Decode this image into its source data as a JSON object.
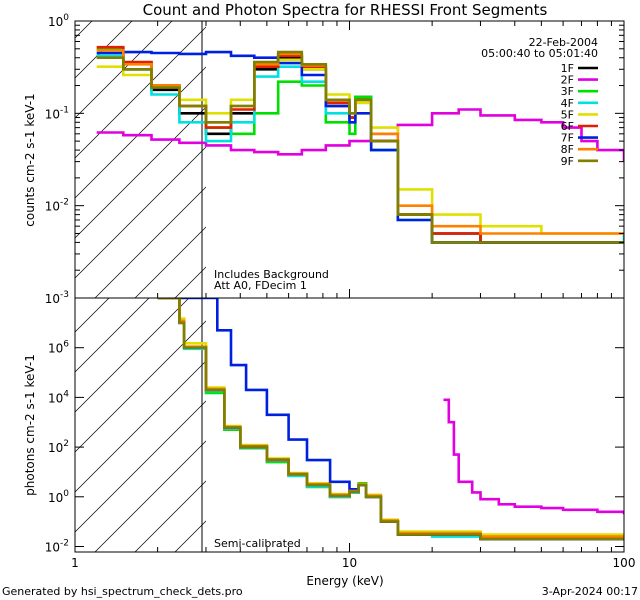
{
  "page": {
    "title": "Count and Photon Spectra for RHESSI Front Segments",
    "footer_left": "Generated by hsi_spectrum_check_dets.pro",
    "footer_right": "3-Apr-2024 00:17"
  },
  "chart_data": [
    {
      "type": "line",
      "panel": "top",
      "xscale": "log",
      "yscale": "log",
      "xlim": [
        1,
        100
      ],
      "ylim": [
        0.001,
        1
      ],
      "xlabel": "",
      "ylabel": "counts cm-2 s-1 keV-1",
      "y_ticks": [
        {
          "value": 1,
          "label": "10^0"
        },
        {
          "value": 0.1,
          "label": "10^-1"
        },
        {
          "value": 0.01,
          "label": "10^-2"
        },
        {
          "value": 0.001,
          "label": "10^-3"
        }
      ],
      "hatched_region_x": [
        1,
        3
      ],
      "annotations": {
        "date": "22-Feb-2004",
        "time_range": "05:00:40 to 05:01:40",
        "line1": "Includes Background",
        "line2": "Att A0, FDecim 1"
      },
      "series": [
        {
          "name": "1F",
          "color": "#000000",
          "x": [
            1.2,
            1.5,
            1.9,
            2.4,
            3.0,
            3.7,
            4.5,
            5.5,
            6.7,
            8.2,
            10.0,
            10.5,
            12.0,
            15.0,
            20.0,
            30.0,
            50.0,
            100.0
          ],
          "y": [
            0.42,
            0.3,
            0.18,
            0.1,
            0.06,
            0.1,
            0.3,
            0.4,
            0.3,
            0.12,
            0.09,
            0.15,
            0.05,
            0.008,
            0.005,
            0.004,
            0.004,
            0.004
          ]
        },
        {
          "name": "2F",
          "color": "#e000e0",
          "x": [
            1.2,
            1.5,
            1.9,
            2.4,
            3.0,
            3.7,
            4.5,
            5.5,
            6.7,
            8.2,
            10.0,
            12.0,
            15.0,
            20.0,
            25.0,
            30.0,
            40.0,
            50.0,
            60.0,
            70.0,
            80.0,
            100.0
          ],
          "y": [
            0.062,
            0.058,
            0.052,
            0.048,
            0.045,
            0.04,
            0.038,
            0.036,
            0.04,
            0.045,
            0.05,
            0.06,
            0.075,
            0.1,
            0.11,
            0.095,
            0.085,
            0.08,
            0.07,
            0.05,
            0.04,
            0.03
          ]
        },
        {
          "name": "3F",
          "color": "#00e000",
          "x": [
            1.2,
            1.5,
            1.9,
            2.4,
            3.0,
            3.7,
            4.5,
            5.5,
            6.7,
            8.2,
            10.0,
            10.5,
            12.0,
            15.0,
            20.0,
            30.0,
            50.0,
            100.0
          ],
          "y": [
            0.5,
            0.35,
            0.2,
            0.12,
            0.07,
            0.06,
            0.1,
            0.22,
            0.2,
            0.08,
            0.06,
            0.15,
            0.04,
            0.008,
            0.004,
            0.004,
            0.004,
            0.004
          ]
        },
        {
          "name": "4F",
          "color": "#00e0e0",
          "x": [
            1.2,
            1.5,
            1.9,
            2.4,
            3.0,
            3.7,
            4.5,
            5.5,
            6.7,
            8.2,
            10.0,
            10.5,
            12.0,
            15.0,
            20.0,
            30.0,
            50.0,
            100.0
          ],
          "y": [
            0.42,
            0.3,
            0.16,
            0.08,
            0.05,
            0.08,
            0.25,
            0.32,
            0.22,
            0.1,
            0.08,
            0.13,
            0.04,
            0.007,
            0.004,
            0.004,
            0.004,
            0.005
          ]
        },
        {
          "name": "5F",
          "color": "#e0e000",
          "x": [
            1.2,
            1.5,
            1.9,
            2.4,
            3.0,
            3.7,
            4.5,
            5.5,
            6.7,
            8.2,
            10.0,
            10.5,
            12.0,
            15.0,
            20.0,
            30.0,
            50.0,
            100.0
          ],
          "y": [
            0.32,
            0.26,
            0.2,
            0.14,
            0.1,
            0.14,
            0.32,
            0.38,
            0.3,
            0.16,
            0.1,
            0.13,
            0.07,
            0.015,
            0.008,
            0.006,
            0.005,
            0.005
          ]
        },
        {
          "name": "6F",
          "color": "#e02000",
          "x": [
            1.2,
            1.5,
            1.9,
            2.4,
            3.0,
            3.7,
            4.5,
            5.5,
            6.7,
            8.2,
            10.0,
            10.5,
            12.0,
            15.0,
            20.0,
            30.0,
            50.0,
            100.0
          ],
          "y": [
            0.52,
            0.36,
            0.2,
            0.12,
            0.07,
            0.11,
            0.32,
            0.42,
            0.32,
            0.13,
            0.09,
            0.14,
            0.05,
            0.008,
            0.005,
            0.004,
            0.004,
            0.004
          ]
        },
        {
          "name": "7F",
          "color": "#0020e0",
          "x": [
            1.2,
            1.5,
            1.9,
            2.4,
            3.0,
            3.7,
            4.5,
            5.5,
            6.7,
            8.2,
            10.0,
            10.5,
            12.0,
            15.0,
            20.0,
            30.0,
            50.0,
            100.0
          ],
          "y": [
            0.45,
            0.46,
            0.45,
            0.44,
            0.46,
            0.42,
            0.4,
            0.35,
            0.26,
            0.12,
            0.08,
            0.1,
            0.04,
            0.007,
            0.004,
            0.004,
            0.004,
            0.004
          ]
        },
        {
          "name": "8F",
          "color": "#ff8000",
          "x": [
            1.2,
            1.5,
            1.9,
            2.4,
            3.0,
            3.7,
            4.5,
            5.5,
            6.7,
            8.2,
            10.0,
            10.5,
            12.0,
            15.0,
            20.0,
            30.0,
            50.0,
            100.0
          ],
          "y": [
            0.48,
            0.34,
            0.2,
            0.12,
            0.08,
            0.12,
            0.34,
            0.44,
            0.33,
            0.14,
            0.1,
            0.14,
            0.06,
            0.01,
            0.006,
            0.005,
            0.005,
            0.005
          ]
        },
        {
          "name": "9F",
          "color": "#7f7f00",
          "x": [
            1.2,
            1.5,
            1.9,
            2.4,
            3.0,
            3.7,
            4.5,
            5.5,
            6.7,
            8.2,
            10.0,
            10.5,
            12.0,
            15.0,
            20.0,
            30.0,
            50.0,
            100.0
          ],
          "y": [
            0.4,
            0.3,
            0.19,
            0.12,
            0.08,
            0.12,
            0.36,
            0.46,
            0.34,
            0.14,
            0.1,
            0.14,
            0.05,
            0.008,
            0.004,
            0.004,
            0.004,
            0.004
          ]
        }
      ]
    },
    {
      "type": "line",
      "panel": "bottom",
      "xscale": "log",
      "yscale": "log",
      "xlim": [
        1,
        100
      ],
      "ylim": [
        0.006,
        100000000
      ],
      "xlabel": "Energy (keV)",
      "ylabel": "photons cm-2 s-1 keV-1",
      "x_ticks": [
        {
          "value": 1,
          "label": "1"
        },
        {
          "value": 10,
          "label": "10"
        },
        {
          "value": 100,
          "label": "100"
        }
      ],
      "y_ticks": [
        {
          "value": 1000000,
          "label": "10^6"
        },
        {
          "value": 10000,
          "label": "10^4"
        },
        {
          "value": 100,
          "label": "10^2"
        },
        {
          "value": 1,
          "label": "10^0"
        },
        {
          "value": 0.01,
          "label": "10^-2"
        }
      ],
      "hatched_region_x": [
        1,
        3
      ],
      "annotations": {
        "line1": "Semi-calibrated"
      },
      "series": [
        {
          "name": "1F",
          "color": "#000000",
          "x": [
            2.0,
            2.4,
            2.5,
            2.9,
            3.0,
            3.5,
            4.0,
            5.0,
            6.0,
            7.0,
            8.5,
            10.0,
            10.8,
            11.5,
            13.0,
            15.0,
            20.0,
            30.0,
            50.0,
            100.0
          ],
          "y": [
            100000000,
            10000000,
            1000000,
            1000000,
            20000,
            600,
            100,
            30,
            8,
            3,
            1,
            1.5,
            3,
            1,
            0.1,
            0.03,
            0.03,
            0.02,
            0.02,
            0.02
          ]
        },
        {
          "name": "2F",
          "color": "#e000e0",
          "x": [
            22.0,
            23.0,
            24.0,
            25.0,
            28.0,
            30.0,
            35.0,
            40.0,
            50.0,
            60.0,
            70.0,
            80.0,
            100.0
          ],
          "y": [
            8000,
            1000,
            50,
            4,
            1.5,
            0.8,
            0.5,
            0.4,
            0.35,
            0.3,
            0.3,
            0.25,
            0.2
          ]
        },
        {
          "name": "3F",
          "color": "#00e000",
          "x": [
            2.0,
            2.4,
            2.5,
            2.9,
            3.0,
            3.5,
            4.0,
            5.0,
            6.0,
            7.0,
            8.5,
            10.0,
            10.8,
            11.5,
            13.0,
            15.0,
            20.0,
            30.0,
            50.0,
            100.0
          ],
          "y": [
            100000000,
            12000000,
            1000000,
            1000000,
            15000,
            500,
            90,
            25,
            7,
            2.5,
            1,
            1.8,
            3.5,
            1,
            0.1,
            0.03,
            0.03,
            0.02,
            0.02,
            0.02
          ]
        },
        {
          "name": "4F",
          "color": "#00e0e0",
          "x": [
            2.0,
            2.4,
            2.5,
            2.9,
            3.0,
            3.5,
            4.0,
            5.0,
            6.0,
            7.0,
            8.5,
            10.0,
            10.8,
            11.5,
            13.0,
            15.0,
            20.0,
            30.0,
            50.0,
            100.0
          ],
          "y": [
            100000000,
            10000000,
            900000,
            900000,
            18000,
            550,
            95,
            28,
            7,
            2.6,
            1,
            1.5,
            3,
            1,
            0.1,
            0.03,
            0.025,
            0.02,
            0.02,
            0.02
          ]
        },
        {
          "name": "5F",
          "color": "#e0e000",
          "x": [
            2.0,
            2.4,
            2.5,
            2.9,
            3.0,
            3.5,
            4.0,
            5.0,
            6.0,
            7.0,
            8.5,
            10.0,
            10.8,
            11.5,
            13.0,
            15.0,
            20.0,
            30.0,
            50.0,
            100.0
          ],
          "y": [
            100000000,
            15000000,
            1500000,
            1500000,
            25000,
            700,
            120,
            35,
            9,
            3.5,
            1.3,
            1.8,
            3.2,
            1.2,
            0.12,
            0.04,
            0.04,
            0.03,
            0.03,
            0.03
          ]
        },
        {
          "name": "6F",
          "color": "#e02000",
          "x": [
            2.0,
            2.4,
            2.5,
            2.9,
            3.0,
            3.5,
            4.0,
            5.0,
            6.0,
            7.0,
            8.5,
            10.0,
            10.8,
            11.5,
            13.0,
            15.0,
            20.0,
            30.0,
            50.0,
            100.0
          ],
          "y": [
            100000000,
            11000000,
            1000000,
            1000000,
            20000,
            600,
            100,
            30,
            8,
            3,
            1.1,
            1.6,
            3,
            1,
            0.1,
            0.03,
            0.03,
            0.02,
            0.02,
            0.02
          ]
        },
        {
          "name": "7F",
          "color": "#0020e0",
          "x": [
            2.0,
            2.5,
            3.0,
            3.3,
            3.7,
            4.2,
            5.0,
            6.0,
            7.0,
            8.5,
            10.0,
            10.8,
            11.5,
            13.0,
            15.0,
            20.0,
            30.0,
            50.0,
            100.0
          ],
          "y": [
            100000000,
            100000000,
            100000000,
            5000000,
            200000,
            20000,
            2000,
            200,
            30,
            4,
            2,
            3,
            1,
            0.1,
            0.03,
            0.03,
            0.02,
            0.02,
            0.02
          ]
        },
        {
          "name": "8F",
          "color": "#ff8000",
          "x": [
            2.0,
            2.4,
            2.5,
            2.9,
            3.0,
            3.5,
            4.0,
            5.0,
            6.0,
            7.0,
            8.5,
            10.0,
            10.8,
            11.5,
            13.0,
            15.0,
            20.0,
            30.0,
            50.0,
            100.0
          ],
          "y": [
            100000000,
            12000000,
            1100000,
            1100000,
            22000,
            650,
            110,
            32,
            8.5,
            3.2,
            1.2,
            1.7,
            3.1,
            1.1,
            0.11,
            0.035,
            0.035,
            0.025,
            0.025,
            0.025
          ]
        },
        {
          "name": "9F",
          "color": "#7f7f00",
          "x": [
            2.0,
            2.4,
            2.5,
            2.9,
            3.0,
            3.5,
            4.0,
            5.0,
            6.0,
            7.0,
            8.5,
            10.0,
            10.8,
            11.5,
            13.0,
            15.0,
            20.0,
            30.0,
            50.0,
            100.0
          ],
          "y": [
            100000000,
            10000000,
            1000000,
            1000000,
            20000,
            620,
            105,
            31,
            8,
            3,
            1.1,
            1.6,
            3,
            1,
            0.1,
            0.03,
            0.03,
            0.02,
            0.02,
            0.02
          ]
        }
      ]
    }
  ]
}
